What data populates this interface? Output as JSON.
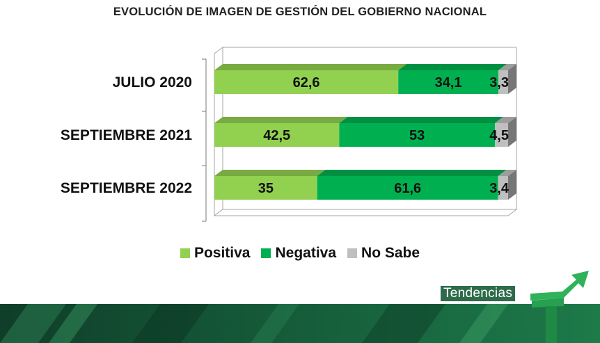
{
  "chart_data": {
    "type": "bar",
    "orientation": "horizontal",
    "stacked": true,
    "percent_stacked": true,
    "title": "EVOLUCIÓN DE IMAGEN DE GESTIÓN DEL GOBIERNO NACIONAL",
    "categories": [
      "JULIO 2020",
      "SEPTIEMBRE 2021",
      "SEPTIEMBRE 2022"
    ],
    "series": [
      {
        "name": "Positiva",
        "values": [
          62.6,
          42.5,
          35
        ],
        "labels": [
          "62,6",
          "42,5",
          "35"
        ],
        "color": "#92d050"
      },
      {
        "name": "Negativa",
        "values": [
          34.1,
          53,
          61.6
        ],
        "labels": [
          "34,1",
          "53",
          "61,6"
        ],
        "color": "#00b050"
      },
      {
        "name": "No Sabe",
        "values": [
          3.3,
          4.5,
          3.4
        ],
        "labels": [
          "3,3",
          "4,5",
          "3,4"
        ],
        "color": "#bfbfbf"
      }
    ],
    "xlim": [
      0,
      100
    ],
    "grid": false,
    "legend_position": "bottom"
  },
  "logo": {
    "text": "Tendencias"
  }
}
